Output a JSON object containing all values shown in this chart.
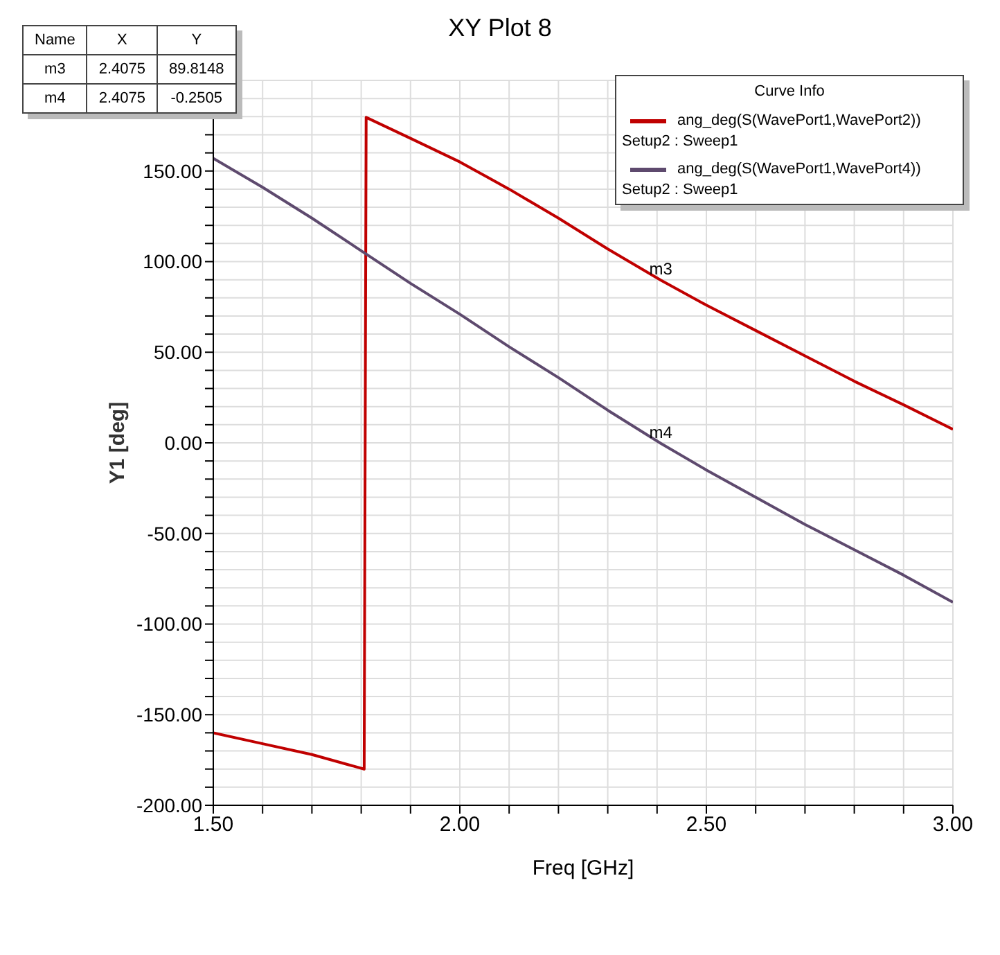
{
  "chart_data": {
    "type": "line",
    "title": "XY Plot 8",
    "xlabel": "Freq [GHz]",
    "ylabel": "Y1 [deg]",
    "legend_title": "Curve Info",
    "legend": "top right",
    "grid": true,
    "marker": "none",
    "line_style": "solid",
    "xlim": [
      1.5,
      3.0
    ],
    "ylim": [
      -200,
      200
    ],
    "xticks": [
      {
        "value": 1.5,
        "label": "1.50"
      },
      {
        "value": 1.6,
        "label": null
      },
      {
        "value": 1.7,
        "label": null
      },
      {
        "value": 1.8,
        "label": null
      },
      {
        "value": 1.9,
        "label": null
      },
      {
        "value": 2.0,
        "label": "2.00"
      },
      {
        "value": 2.1,
        "label": null
      },
      {
        "value": 2.2,
        "label": null
      },
      {
        "value": 2.3,
        "label": null
      },
      {
        "value": 2.4,
        "label": null
      },
      {
        "value": 2.5,
        "label": "2.50"
      },
      {
        "value": 2.6,
        "label": null
      },
      {
        "value": 2.7,
        "label": null
      },
      {
        "value": 2.8,
        "label": null
      },
      {
        "value": 2.9,
        "label": null
      },
      {
        "value": 3.0,
        "label": "3.00"
      }
    ],
    "yticks": [
      {
        "value": -200,
        "label": "-200.00"
      },
      {
        "value": -190,
        "label": null
      },
      {
        "value": -180,
        "label": null
      },
      {
        "value": -170,
        "label": null
      },
      {
        "value": -160,
        "label": null
      },
      {
        "value": -150,
        "label": "-150.00"
      },
      {
        "value": -140,
        "label": null
      },
      {
        "value": -130,
        "label": null
      },
      {
        "value": -120,
        "label": null
      },
      {
        "value": -110,
        "label": null
      },
      {
        "value": -100,
        "label": "-100.00"
      },
      {
        "value": -90,
        "label": null
      },
      {
        "value": -80,
        "label": null
      },
      {
        "value": -70,
        "label": null
      },
      {
        "value": -60,
        "label": null
      },
      {
        "value": -50,
        "label": "-50.00"
      },
      {
        "value": -40,
        "label": null
      },
      {
        "value": -30,
        "label": null
      },
      {
        "value": -20,
        "label": null
      },
      {
        "value": -10,
        "label": null
      },
      {
        "value": 0,
        "label": "0.00"
      },
      {
        "value": 10,
        "label": null
      },
      {
        "value": 20,
        "label": null
      },
      {
        "value": 30,
        "label": null
      },
      {
        "value": 40,
        "label": null
      },
      {
        "value": 50,
        "label": "50.00"
      },
      {
        "value": 60,
        "label": null
      },
      {
        "value": 70,
        "label": null
      },
      {
        "value": 80,
        "label": null
      },
      {
        "value": 90,
        "label": null
      },
      {
        "value": 100,
        "label": "100.00"
      },
      {
        "value": 110,
        "label": null
      },
      {
        "value": 120,
        "label": null
      },
      {
        "value": 130,
        "label": null
      },
      {
        "value": 140,
        "label": null
      },
      {
        "value": 150,
        "label": "150.00"
      },
      {
        "value": 160,
        "label": null
      },
      {
        "value": 170,
        "label": null
      },
      {
        "value": 180,
        "label": null
      },
      {
        "value": 190,
        "label": null
      }
    ],
    "series": [
      {
        "name": "ang_deg(S(WavePort1,WavePort2))\nSetup2 : Sweep1",
        "color": "#c00000",
        "x": [
          1.5,
          1.6,
          1.7,
          1.806,
          1.81,
          1.9,
          2.0,
          2.1,
          2.2,
          2.3,
          2.4075,
          2.5,
          2.6,
          2.7,
          2.8,
          2.9,
          3.0
        ],
        "values": [
          -160,
          -166,
          -172,
          -180,
          179.6,
          168,
          155,
          140,
          124,
          107,
          89.8,
          76,
          62,
          48,
          34,
          21,
          7.5
        ]
      },
      {
        "name": "ang_deg(S(WavePort1,WavePort4))\nSetup2 : Sweep1",
        "color": "#5e4a6e",
        "x": [
          1.5,
          1.6,
          1.7,
          1.8,
          1.9,
          2.0,
          2.1,
          2.2,
          2.3,
          2.4075,
          2.5,
          2.6,
          2.7,
          2.8,
          2.9,
          3.0
        ],
        "values": [
          157,
          141,
          124,
          106,
          88,
          71,
          53,
          36,
          18,
          -0.3,
          -15,
          -30,
          -45,
          -59,
          -73,
          -88
        ]
      }
    ],
    "annotations": [
      "Name",
      "X",
      "Y",
      "m3",
      "2.4075",
      "89.8148",
      "m4",
      "2.4075",
      "-0.2505",
      {
        "text": "m3",
        "x": 2.4075,
        "y": 89.8148
      },
      {
        "text": "m4",
        "x": 2.4075,
        "y": -0.2505
      }
    ]
  }
}
